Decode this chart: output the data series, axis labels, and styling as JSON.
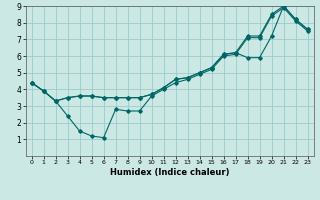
{
  "xlabel": "Humidex (Indice chaleur)",
  "bg_color": "#cce8e4",
  "grid_color": "#99cccc",
  "line_color": "#006666",
  "xlim": [
    -0.5,
    23.5
  ],
  "ylim": [
    0,
    9
  ],
  "xticks": [
    0,
    1,
    2,
    3,
    4,
    5,
    6,
    7,
    8,
    9,
    10,
    11,
    12,
    13,
    14,
    15,
    16,
    17,
    18,
    19,
    20,
    21,
    22,
    23
  ],
  "yticks": [
    1,
    2,
    3,
    4,
    5,
    6,
    7,
    8,
    9
  ],
  "line1_x": [
    0,
    1,
    2,
    3,
    4,
    5,
    6,
    7,
    8,
    9,
    10,
    11,
    12,
    13,
    14,
    15,
    16,
    17,
    18,
    19,
    20,
    21,
    22,
    23
  ],
  "line1_y": [
    4.4,
    3.9,
    3.3,
    3.5,
    3.6,
    3.6,
    3.5,
    3.5,
    3.5,
    3.5,
    3.7,
    4.1,
    4.6,
    4.7,
    5.0,
    5.3,
    6.1,
    6.2,
    7.2,
    7.2,
    8.5,
    9.0,
    8.2,
    7.6
  ],
  "line2_x": [
    0,
    1,
    2,
    3,
    4,
    5,
    6,
    7,
    8,
    9,
    10,
    11,
    12,
    13,
    14,
    15,
    16,
    17,
    18,
    19,
    20,
    21,
    22,
    23
  ],
  "line2_y": [
    4.4,
    3.9,
    3.3,
    2.4,
    1.5,
    1.2,
    1.1,
    2.8,
    2.7,
    2.7,
    3.6,
    4.0,
    4.4,
    4.6,
    4.9,
    5.2,
    6.0,
    6.1,
    7.1,
    7.1,
    8.4,
    8.9,
    8.1,
    7.5
  ],
  "line3_x": [
    0,
    1,
    2,
    3,
    4,
    5,
    6,
    7,
    8,
    9,
    10,
    11,
    12,
    13,
    14,
    15,
    16,
    17,
    18,
    19,
    20,
    21,
    22,
    23
  ],
  "line3_y": [
    4.4,
    3.9,
    3.3,
    3.5,
    3.6,
    3.6,
    3.5,
    3.5,
    3.5,
    3.5,
    3.7,
    4.1,
    4.6,
    4.7,
    5.0,
    5.3,
    6.1,
    6.2,
    5.9,
    5.9,
    7.2,
    9.0,
    8.2,
    7.6
  ]
}
